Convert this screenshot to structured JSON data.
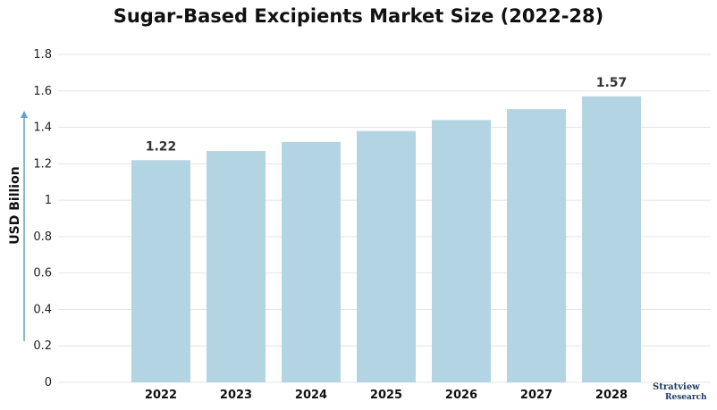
{
  "chart_data": {
    "type": "bar",
    "title": "Sugar-Based Excipients Market Size (2022-28)",
    "ylabel": "USD Billion",
    "xlabel": "",
    "categories": [
      "2022",
      "2023",
      "2024",
      "2025",
      "2026",
      "2027",
      "2028"
    ],
    "values": [
      1.22,
      1.27,
      1.32,
      1.38,
      1.44,
      1.5,
      1.57
    ],
    "data_labels": [
      "1.22",
      "",
      "",
      "",
      "",
      "",
      "1.57"
    ],
    "ylim": [
      0,
      1.8
    ],
    "yticks": [
      "0",
      "0.2",
      "0.4",
      "0.6",
      "0.8",
      "1",
      "1.2",
      "1.4",
      "1.6",
      "1.8"
    ],
    "grid": true,
    "bar_color": "#b3d5e3",
    "grid_color": "#e4e4e4",
    "arrow_color": "#5aa5c4"
  },
  "logo": {
    "name": "Stratview",
    "sub": "Research"
  }
}
